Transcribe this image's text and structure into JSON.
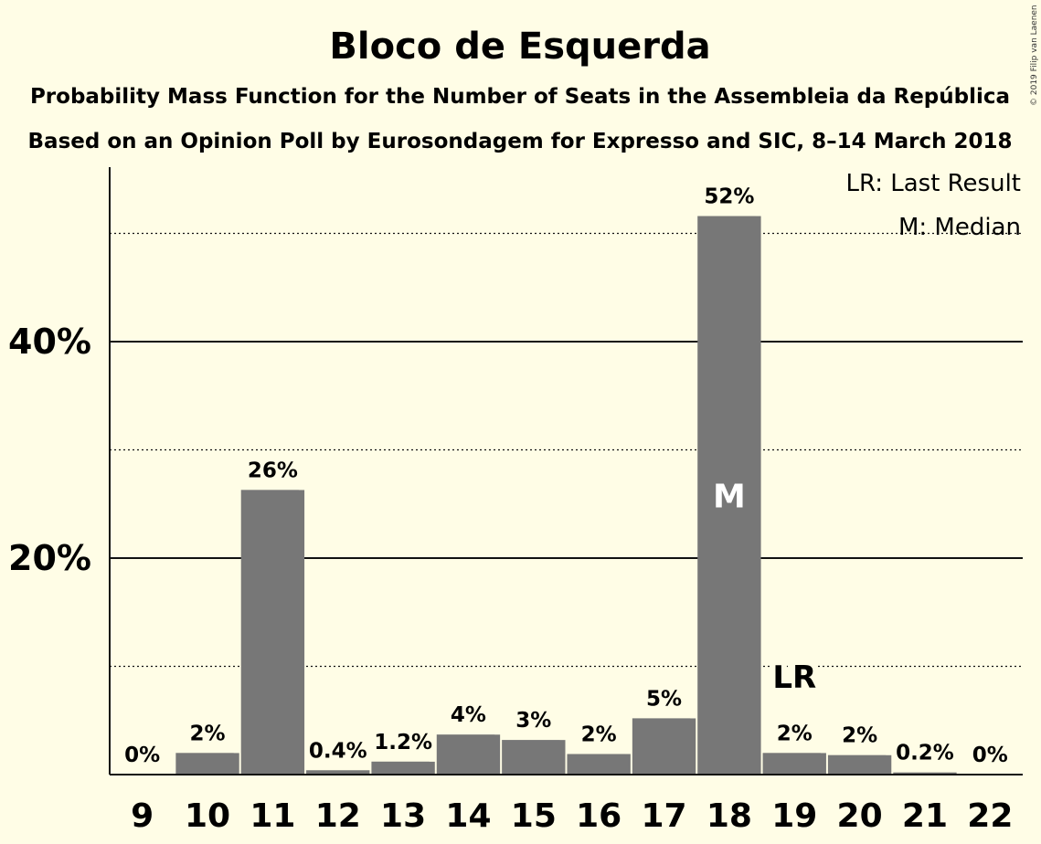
{
  "chart_data": {
    "type": "bar",
    "title": "Bloco de Esquerda",
    "subtitle": "Probability Mass Function for the Number of Seats in the Assembleia da República",
    "subtitle2": "Based on an Opinion Poll by Eurosondagem for Expresso and SIC, 8–14 March 2018",
    "copyright": "© 2019 Filip van Laenen",
    "categories": [
      "9",
      "10",
      "11",
      "12",
      "13",
      "14",
      "15",
      "16",
      "17",
      "18",
      "19",
      "20",
      "21",
      "22"
    ],
    "values": [
      0,
      2.0,
      26.3,
      0.4,
      1.2,
      3.7,
      3.2,
      1.9,
      5.2,
      51.6,
      2.0,
      1.8,
      0.2,
      0
    ],
    "value_labels": [
      "0%",
      "2%",
      "26%",
      "0.4%",
      "1.2%",
      "4%",
      "3%",
      "2%",
      "5%",
      "52%",
      "2%",
      "2%",
      "0.2%",
      "0%"
    ],
    "y_ticks": [
      {
        "value": 20,
        "label": "20%"
      },
      {
        "value": 40,
        "label": "40%"
      }
    ],
    "dotted_gridlines": [
      10,
      30,
      50
    ],
    "ylim": [
      0,
      56
    ],
    "xlabel": "",
    "ylabel": "",
    "median_category": "18",
    "median_marker": "M",
    "last_result_category": "19",
    "last_result_marker": "LR",
    "legend": [
      "LR: Last Result",
      "M: Median"
    ],
    "legend_position": "top-right",
    "colors": {
      "bar": "#777777",
      "background": "#fffde6",
      "text": "#111111"
    }
  }
}
